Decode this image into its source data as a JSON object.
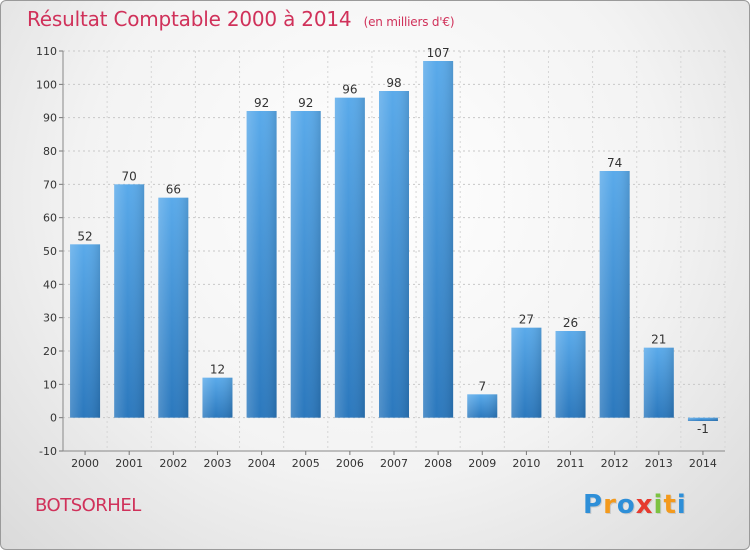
{
  "chart_data": {
    "type": "bar",
    "title": "Résultat Comptable 2000 à 2014",
    "subtitle": "(en milliers d'€)",
    "categories": [
      "2000",
      "2001",
      "2002",
      "2003",
      "2004",
      "2005",
      "2006",
      "2007",
      "2008",
      "2009",
      "2010",
      "2011",
      "2012",
      "2013",
      "2014"
    ],
    "values": [
      52,
      70,
      66,
      12,
      92,
      92,
      96,
      98,
      107,
      7,
      27,
      26,
      74,
      21,
      -1
    ],
    "data_labels": [
      "52",
      "70",
      "66",
      "12",
      "92",
      "92",
      "96",
      "98",
      "107",
      "7",
      "27",
      "26",
      "74",
      "21",
      "-1"
    ],
    "ylim": [
      -10,
      110
    ],
    "yticks": [
      -10,
      0,
      10,
      20,
      30,
      40,
      50,
      60,
      70,
      80,
      90,
      100,
      110
    ],
    "ytick_labels": [
      "-10",
      "0",
      "10",
      "20",
      "30",
      "40",
      "50",
      "60",
      "70",
      "80",
      "90",
      "100",
      "110"
    ],
    "grid": true,
    "bar_color": "#3b8fd6"
  },
  "footer": {
    "city": "BOTSORHEL",
    "logo": {
      "letters": [
        "P",
        "r",
        "o",
        "x",
        "i",
        "t",
        "i"
      ],
      "colors": [
        "#2e8fd8",
        "#f39a1d",
        "#2e8fd8",
        "#e63a2f",
        "#7cc242",
        "#f39a1d",
        "#2e8fd8"
      ]
    }
  }
}
